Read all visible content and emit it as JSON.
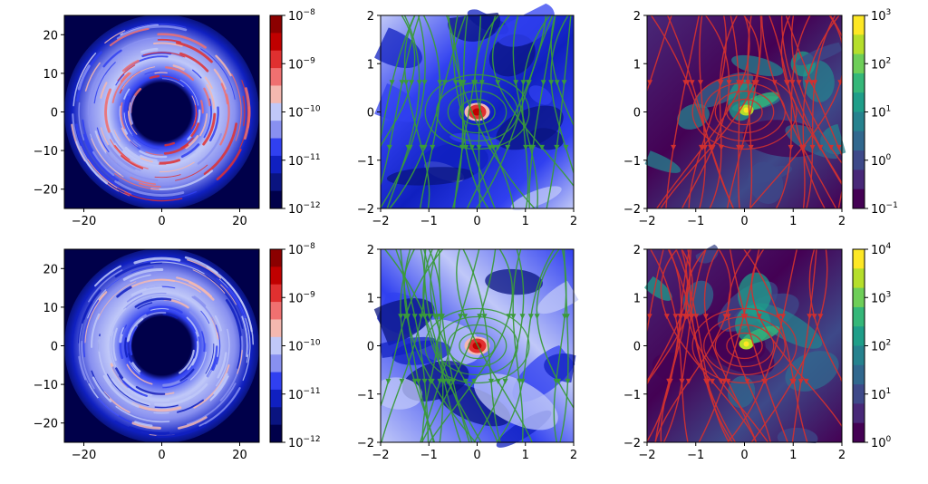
{
  "chart_data": [
    {
      "type": "heatmap",
      "panel": "row1-col1",
      "xlim": [
        -25,
        25
      ],
      "ylim": [
        -25,
        25
      ],
      "xticks": [
        "−20",
        "0",
        "20"
      ],
      "yticks": [
        "20",
        "10",
        "0",
        "−10",
        "−20"
      ],
      "colorbar": {
        "scale": "log",
        "ticks": [
          {
            "base": "10",
            "exp": "−8"
          },
          {
            "base": "10",
            "exp": "−9"
          },
          {
            "base": "10",
            "exp": "−10"
          },
          {
            "base": "10",
            "exp": "−11"
          },
          {
            "base": "10",
            "exp": "−12"
          }
        ],
        "colors": [
          "#8b0000",
          "#c00000",
          "#e03030",
          "#f07070",
          "#f4b8b0",
          "#c0c8f8",
          "#8890f0",
          "#3040f0",
          "#1020c0",
          "#0a1480",
          "#00004a"
        ]
      }
    },
    {
      "type": "heatmap",
      "panel": "row1-col2",
      "xlim": [
        -2,
        2
      ],
      "ylim": [
        -2,
        2
      ],
      "xticks": [
        "−2",
        "−1",
        "0",
        "1",
        "2"
      ],
      "yticks": [
        "2",
        "1",
        "0",
        "−1",
        "−2"
      ],
      "streamline_color": "#3a9a3a"
    },
    {
      "type": "heatmap",
      "panel": "row1-col3",
      "xlim": [
        -2,
        2
      ],
      "ylim": [
        -2,
        2
      ],
      "xticks": [
        "−2",
        "−1",
        "0",
        "1",
        "2"
      ],
      "yticks": [
        "2",
        "1",
        "0",
        "−1",
        "−2"
      ],
      "streamline_color": "#d03030",
      "colorbar": {
        "scale": "log",
        "ticks": [
          {
            "base": "10",
            "exp": "3"
          },
          {
            "base": "10",
            "exp": "2"
          },
          {
            "base": "10",
            "exp": "1"
          },
          {
            "base": "10",
            "exp": "0"
          },
          {
            "base": "10",
            "exp": "−1"
          }
        ],
        "colors": [
          "#fde725",
          "#b5de2b",
          "#6ece58",
          "#35b779",
          "#1f9e89",
          "#26828e",
          "#31688e",
          "#3e4989",
          "#482878",
          "#440154"
        ]
      }
    },
    {
      "type": "heatmap",
      "panel": "row2-col1",
      "xlim": [
        -25,
        25
      ],
      "ylim": [
        -25,
        25
      ],
      "xticks": [
        "−20",
        "0",
        "20"
      ],
      "yticks": [
        "20",
        "10",
        "0",
        "−10",
        "−20"
      ],
      "colorbar": {
        "scale": "log",
        "ticks": [
          {
            "base": "10",
            "exp": "−8"
          },
          {
            "base": "10",
            "exp": "−9"
          },
          {
            "base": "10",
            "exp": "−10"
          },
          {
            "base": "10",
            "exp": "−11"
          },
          {
            "base": "10",
            "exp": "−12"
          }
        ],
        "colors": [
          "#8b0000",
          "#c00000",
          "#e03030",
          "#f07070",
          "#f4b8b0",
          "#c0c8f8",
          "#8890f0",
          "#3040f0",
          "#1020c0",
          "#0a1480",
          "#00004a"
        ]
      }
    },
    {
      "type": "heatmap",
      "panel": "row2-col2",
      "xlim": [
        -2,
        2
      ],
      "ylim": [
        -2,
        2
      ],
      "xticks": [
        "−2",
        "−1",
        "0",
        "1",
        "2"
      ],
      "yticks": [
        "2",
        "1",
        "0",
        "−1",
        "−2"
      ],
      "streamline_color": "#3a9a3a"
    },
    {
      "type": "heatmap",
      "panel": "row2-col3",
      "xlim": [
        -2,
        2
      ],
      "ylim": [
        -2,
        2
      ],
      "xticks": [
        "−2",
        "−1",
        "0",
        "1",
        "2"
      ],
      "yticks": [
        "2",
        "1",
        "0",
        "−1",
        "−2"
      ],
      "streamline_color": "#d03030",
      "colorbar": {
        "scale": "log",
        "ticks": [
          {
            "base": "10",
            "exp": "4"
          },
          {
            "base": "10",
            "exp": "3"
          },
          {
            "base": "10",
            "exp": "2"
          },
          {
            "base": "10",
            "exp": "1"
          },
          {
            "base": "10",
            "exp": "0"
          }
        ],
        "colors": [
          "#fde725",
          "#b5de2b",
          "#6ece58",
          "#35b779",
          "#1f9e89",
          "#26828e",
          "#31688e",
          "#3e4989",
          "#482878",
          "#440154"
        ]
      }
    }
  ]
}
